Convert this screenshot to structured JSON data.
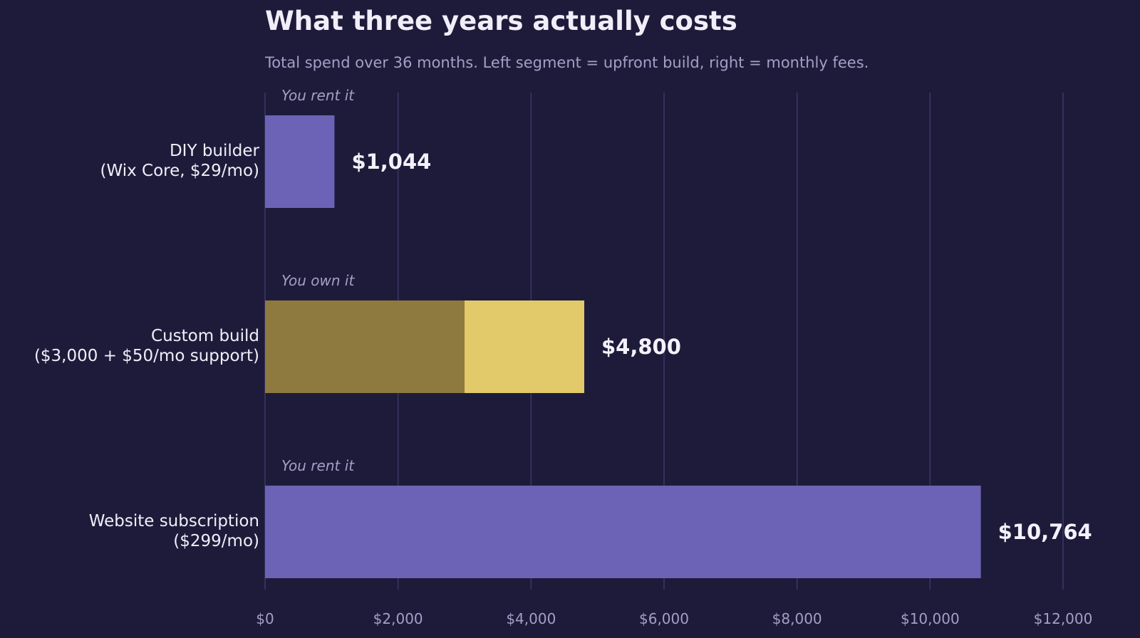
{
  "colors": {
    "background": "#1e1b3a",
    "rent": "#6c63b7",
    "own_upfront": "#8e7a3e",
    "own_monthly": "#e2c96a",
    "grid": "#3b3766",
    "text": "#f1eef9",
    "muted": "#a49fc6"
  },
  "chart_data": {
    "type": "bar",
    "orientation": "horizontal",
    "stacked": true,
    "title": "What three years actually costs",
    "subtitle": "Total spend over 36 months. Left segment = upfront build, right = monthly fees.",
    "xlabel": "",
    "ylabel": "",
    "xlim": [
      0,
      12000
    ],
    "grid": "vertical",
    "ticks": [
      0,
      2000,
      4000,
      6000,
      8000,
      10000,
      12000
    ],
    "tick_labels": [
      "$0",
      "$2,000",
      "$4,000",
      "$6,000",
      "$8,000",
      "$10,000",
      "$12,000"
    ],
    "bars": [
      {
        "label_lines": [
          "DIY builder",
          "(Wix Core, $29/mo)"
        ],
        "note": "You rent it",
        "total_label": "$1,044",
        "segments": [
          {
            "part": "upfront build",
            "value": 0,
            "color_key": "own_upfront"
          },
          {
            "part": "monthly fees",
            "value": 1044,
            "color_key": "rent"
          }
        ]
      },
      {
        "label_lines": [
          "Custom build",
          "($3,000 + $50/mo support)"
        ],
        "note": "You own it",
        "total_label": "$4,800",
        "segments": [
          {
            "part": "upfront build",
            "value": 3000,
            "color_key": "own_upfront"
          },
          {
            "part": "monthly fees",
            "value": 1800,
            "color_key": "own_monthly"
          }
        ]
      },
      {
        "label_lines": [
          "Website subscription",
          "($299/mo)"
        ],
        "note": "You rent it",
        "total_label": "$10,764",
        "segments": [
          {
            "part": "upfront build",
            "value": 0,
            "color_key": "own_upfront"
          },
          {
            "part": "monthly fees",
            "value": 10764,
            "color_key": "rent"
          }
        ]
      }
    ]
  }
}
